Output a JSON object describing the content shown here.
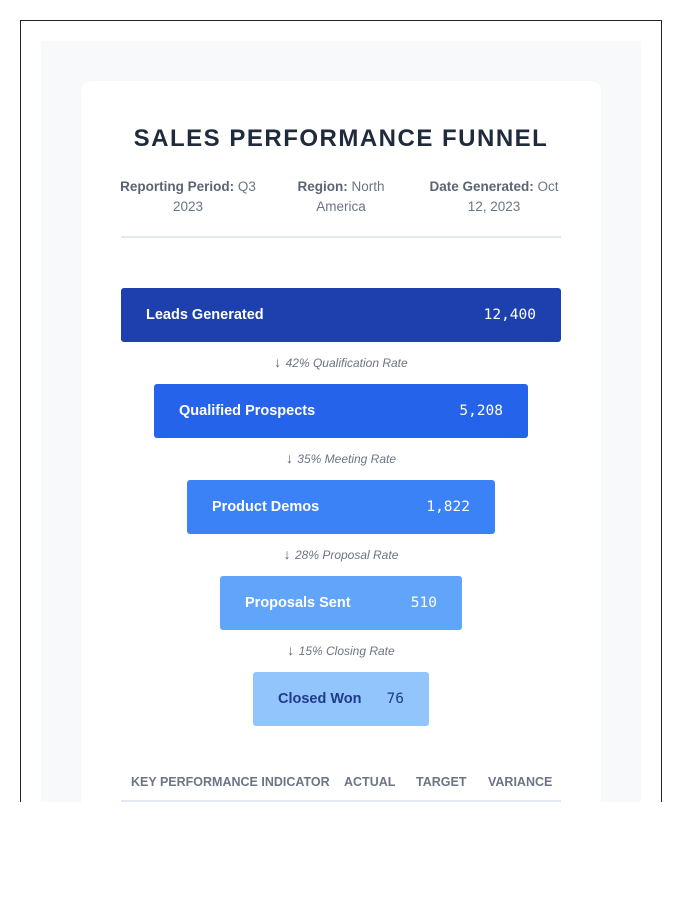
{
  "report": {
    "title": "SALES PERFORMANCE FUNNEL",
    "meta": [
      {
        "label": "Reporting Period:",
        "value": "Q3 2023"
      },
      {
        "label": "Region:",
        "value": "North America"
      },
      {
        "label": "Date Generated:",
        "value": "Oct 12, 2023"
      }
    ]
  },
  "funnel": {
    "stages": [
      {
        "label": "Leads Generated",
        "value": "12,400",
        "color": "#1e40af",
        "text_color": "#ffffff"
      },
      {
        "label": "Qualified Prospects",
        "value": "5,208",
        "color": "#2563eb",
        "text_color": "#ffffff"
      },
      {
        "label": "Product Demos",
        "value": "1,822",
        "color": "#3b82f6",
        "text_color": "#ffffff"
      },
      {
        "label": "Proposals Sent",
        "value": "510",
        "color": "#60a5fa",
        "text_color": "#ffffff"
      },
      {
        "label": "Closed Won",
        "value": "76",
        "color": "#93c5fd",
        "text_color": "#1e3a8a"
      }
    ],
    "conversions": [
      {
        "arrow": "↓",
        "text": "42% Qualification Rate"
      },
      {
        "arrow": "↓",
        "text": "35% Meeting Rate"
      },
      {
        "arrow": "↓",
        "text": "28% Proposal Rate"
      },
      {
        "arrow": "↓",
        "text": "15% Closing Rate"
      }
    ]
  },
  "kpi_table": {
    "headers": [
      "KEY PERFORMANCE INDICATOR",
      "ACTUAL",
      "TARGET",
      "VARIANCE"
    ]
  }
}
